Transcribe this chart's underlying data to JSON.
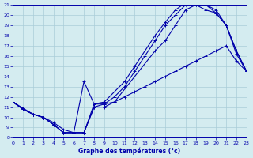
{
  "title": "Graphe des températures (°c)",
  "bg_color": "#d4ecf0",
  "grid_color": "#aacdd8",
  "line_color": "#0000aa",
  "xlim": [
    0,
    23
  ],
  "ylim": [
    8,
    21
  ],
  "xticks": [
    0,
    1,
    2,
    3,
    4,
    5,
    6,
    7,
    8,
    9,
    10,
    11,
    12,
    13,
    14,
    15,
    16,
    17,
    18,
    19,
    20,
    21,
    22,
    23
  ],
  "yticks": [
    8,
    9,
    10,
    11,
    12,
    13,
    14,
    15,
    16,
    17,
    18,
    19,
    20,
    21
  ],
  "curves": [
    {
      "x": [
        0,
        1,
        2,
        3,
        4,
        5,
        6,
        7,
        8,
        9,
        10,
        11,
        12,
        13,
        14,
        15,
        16,
        17,
        18,
        19,
        20,
        21,
        22,
        23
      ],
      "y": [
        11.5,
        10.8,
        10.3,
        10.0,
        9.5,
        8.8,
        8.5,
        8.5,
        11.0,
        11.0,
        11.5,
        12.0,
        12.5,
        13.0,
        13.5,
        14.0,
        14.5,
        15.0,
        15.5,
        16.0,
        16.5,
        17.0,
        15.5,
        14.5
      ]
    },
    {
      "x": [
        0,
        1,
        2,
        3,
        4,
        5,
        6,
        7,
        8,
        9,
        10,
        11,
        12,
        13,
        14,
        15,
        16,
        17,
        18,
        19,
        20,
        21,
        22,
        23
      ],
      "y": [
        11.5,
        10.8,
        10.3,
        10.0,
        9.3,
        8.5,
        8.5,
        8.5,
        11.0,
        11.3,
        12.0,
        13.0,
        14.5,
        16.0,
        17.5,
        19.0,
        20.0,
        21.0,
        21.0,
        20.5,
        20.2,
        19.0,
        16.5,
        14.5
      ]
    },
    {
      "x": [
        0,
        1,
        2,
        3,
        4,
        5,
        6,
        7,
        8,
        9,
        10,
        11,
        12,
        13,
        14,
        15,
        16,
        17,
        18,
        19,
        20,
        21,
        22,
        23
      ],
      "y": [
        11.5,
        10.8,
        10.3,
        10.0,
        9.3,
        8.5,
        8.5,
        8.5,
        11.3,
        11.5,
        12.5,
        13.5,
        15.0,
        16.5,
        18.0,
        19.3,
        20.5,
        21.2,
        21.2,
        21.0,
        20.2,
        19.0,
        16.5,
        14.5
      ]
    },
    {
      "x": [
        0,
        2,
        3,
        4,
        5,
        6,
        7,
        8,
        9,
        10,
        14,
        15,
        16,
        17,
        18,
        19,
        20,
        21,
        22,
        23
      ],
      "y": [
        11.5,
        10.3,
        10.0,
        9.3,
        8.5,
        8.5,
        13.5,
        11.3,
        11.3,
        11.5,
        16.5,
        17.5,
        19.0,
        20.5,
        21.0,
        21.0,
        20.5,
        19.0,
        16.2,
        14.5
      ]
    }
  ]
}
